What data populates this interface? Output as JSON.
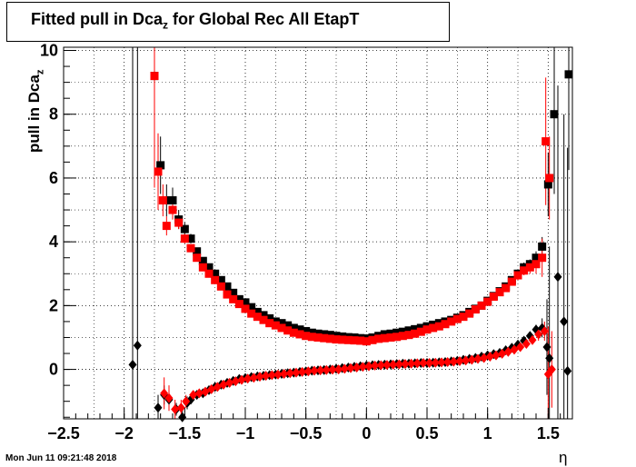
{
  "title": {
    "main": "Fitted pull in Dca",
    "sub": "z",
    "rest": " for Global Rec All EtapT"
  },
  "ylabel": {
    "main": "pull in Dca",
    "sub": "z"
  },
  "xlabel": "η",
  "timestamp": "Mon Jun 11 09:21:48 2018",
  "chart_data": {
    "type": "scatter",
    "title": "Fitted pull in Dca_z for Global Rec All EtapT",
    "xlabel": "η",
    "ylabel": "pull in Dca_z",
    "xlim": [
      -2.5,
      1.7
    ],
    "ylim": [
      -1.55,
      10.1
    ],
    "xticks": [
      -2.5,
      -2,
      -1.5,
      -1,
      -0.5,
      0,
      0.5,
      1,
      1.5
    ],
    "xtick_labels": [
      "−2.5",
      "−2",
      "−1.5",
      "−1",
      "−0.5",
      "0",
      "0.5",
      "1",
      "1.5"
    ],
    "yticks": [
      0,
      2,
      4,
      6,
      8,
      10
    ],
    "ytick_labels": [
      "0",
      "2",
      "4",
      "6",
      "8",
      "10"
    ],
    "grid": true,
    "series": [
      {
        "marker": "square",
        "color": "#000000",
        "x": [
          -1.75,
          -1.7,
          -1.65,
          -1.6,
          -1.55,
          -1.5,
          -1.45,
          -1.4,
          -1.35,
          -1.3,
          -1.25,
          -1.2,
          -1.15,
          -1.1,
          -1.05,
          -1.0,
          -0.95,
          -0.9,
          -0.85,
          -0.8,
          -0.75,
          -0.7,
          -0.65,
          -0.6,
          -0.55,
          -0.5,
          -0.45,
          -0.4,
          -0.35,
          -0.3,
          -0.25,
          -0.2,
          -0.15,
          -0.1,
          -0.05,
          0.0,
          0.05,
          0.1,
          0.15,
          0.2,
          0.25,
          0.3,
          0.35,
          0.4,
          0.45,
          0.5,
          0.55,
          0.6,
          0.65,
          0.7,
          0.75,
          0.8,
          0.85,
          0.9,
          0.95,
          1.0,
          1.05,
          1.1,
          1.15,
          1.2,
          1.25,
          1.3,
          1.35,
          1.4,
          1.45,
          1.5,
          1.55,
          1.67
        ],
        "y": [
          9.2,
          6.4,
          5.3,
          5.3,
          4.7,
          4.4,
          4.1,
          3.7,
          3.4,
          3.2,
          3.0,
          2.8,
          2.6,
          2.4,
          2.2,
          2.1,
          1.95,
          1.8,
          1.7,
          1.6,
          1.5,
          1.45,
          1.38,
          1.3,
          1.25,
          1.2,
          1.15,
          1.12,
          1.1,
          1.08,
          1.05,
          1.03,
          1.01,
          1.0,
          0.98,
          0.97,
          1.0,
          1.05,
          1.1,
          1.12,
          1.15,
          1.18,
          1.22,
          1.26,
          1.3,
          1.35,
          1.4,
          1.45,
          1.5,
          1.55,
          1.62,
          1.7,
          1.8,
          1.9,
          2.0,
          2.15,
          2.3,
          2.45,
          2.6,
          2.8,
          3.0,
          3.2,
          3.3,
          3.5,
          3.85,
          5.8,
          8.0,
          9.25
        ],
        "yerr": [
          0,
          0.9,
          0.5,
          0.4,
          0.3,
          0.2,
          0.15,
          0.1,
          0,
          0,
          0,
          0,
          0,
          0,
          0,
          0,
          0,
          0,
          0,
          0,
          0,
          0,
          0,
          0,
          0,
          0,
          0,
          0,
          0,
          0,
          0,
          0,
          0,
          0,
          0,
          0,
          0,
          0,
          0,
          0,
          0,
          0,
          0,
          0,
          0,
          0,
          0,
          0,
          0,
          0,
          0,
          0,
          0,
          0,
          0,
          0,
          0,
          0,
          0,
          0.1,
          0.1,
          0.15,
          0.15,
          0.2,
          0.3,
          1.0,
          2.5,
          3.0
        ]
      },
      {
        "marker": "square",
        "color": "#ff0000",
        "x": [
          -1.75,
          -1.72,
          -1.68,
          -1.65,
          -1.6,
          -1.55,
          -1.5,
          -1.45,
          -1.4,
          -1.35,
          -1.3,
          -1.25,
          -1.2,
          -1.15,
          -1.1,
          -1.05,
          -1.0,
          -0.95,
          -0.9,
          -0.85,
          -0.8,
          -0.75,
          -0.7,
          -0.65,
          -0.6,
          -0.55,
          -0.5,
          -0.45,
          -0.4,
          -0.35,
          -0.3,
          -0.25,
          -0.2,
          -0.15,
          -0.1,
          -0.05,
          0.0,
          0.05,
          0.1,
          0.15,
          0.2,
          0.25,
          0.3,
          0.35,
          0.4,
          0.45,
          0.5,
          0.55,
          0.6,
          0.65,
          0.7,
          0.75,
          0.8,
          0.85,
          0.9,
          0.95,
          1.0,
          1.05,
          1.1,
          1.15,
          1.2,
          1.25,
          1.3,
          1.35,
          1.4,
          1.45,
          1.48,
          1.51
        ],
        "y": [
          9.2,
          6.2,
          5.3,
          4.5,
          5.0,
          4.6,
          4.1,
          3.8,
          3.5,
          3.2,
          3.0,
          2.8,
          2.6,
          2.35,
          2.2,
          2.05,
          1.9,
          1.75,
          1.65,
          1.55,
          1.45,
          1.38,
          1.3,
          1.22,
          1.15,
          1.1,
          1.05,
          1.02,
          1.0,
          0.98,
          0.96,
          0.94,
          0.93,
          0.92,
          0.91,
          0.9,
          0.88,
          0.92,
          0.96,
          0.98,
          1.0,
          1.02,
          1.05,
          1.08,
          1.12,
          1.18,
          1.25,
          1.3,
          1.35,
          1.42,
          1.5,
          1.58,
          1.65,
          1.75,
          1.88,
          2.0,
          2.12,
          2.28,
          2.42,
          2.55,
          2.75,
          2.95,
          3.1,
          3.2,
          3.3,
          3.5,
          7.15,
          6.0
        ],
        "yerr": [
          3.5,
          1.2,
          0.5,
          0.3,
          0.3,
          0.2,
          0.15,
          0.1,
          0,
          0,
          0,
          0,
          0,
          0,
          0,
          0,
          0,
          0,
          0,
          0,
          0,
          0,
          0,
          0,
          0,
          0,
          0,
          0,
          0,
          0,
          0,
          0,
          0,
          0,
          0,
          0,
          0,
          0,
          0,
          0,
          0,
          0,
          0,
          0,
          0,
          0,
          0,
          0,
          0,
          0,
          0,
          0,
          0,
          0,
          0,
          0,
          0,
          0,
          0,
          0.1,
          0.1,
          0.15,
          0.15,
          0.2,
          0.3,
          0.6,
          2.0,
          1.3
        ]
      },
      {
        "marker": "diamond",
        "color": "#000000",
        "x": [
          -1.93,
          -1.89,
          -1.72,
          -1.67,
          -1.63,
          -1.57,
          -1.52,
          -1.48,
          -1.45,
          -1.4,
          -1.35,
          -1.3,
          -1.25,
          -1.2,
          -1.15,
          -1.1,
          -1.05,
          -1.0,
          -0.95,
          -0.9,
          -0.85,
          -0.8,
          -0.75,
          -0.7,
          -0.65,
          -0.6,
          -0.55,
          -0.5,
          -0.45,
          -0.4,
          -0.35,
          -0.3,
          -0.25,
          -0.2,
          -0.15,
          -0.1,
          -0.05,
          0.0,
          0.05,
          0.1,
          0.15,
          0.2,
          0.25,
          0.3,
          0.35,
          0.4,
          0.45,
          0.5,
          0.55,
          0.6,
          0.65,
          0.7,
          0.75,
          0.8,
          0.85,
          0.9,
          0.95,
          1.0,
          1.05,
          1.1,
          1.15,
          1.2,
          1.25,
          1.3,
          1.35,
          1.4,
          1.45,
          1.49,
          1.51,
          1.58,
          1.63,
          1.66
        ],
        "y": [
          0.15,
          0.75,
          -1.2,
          -0.8,
          -0.95,
          -1.25,
          -1.5,
          -1.05,
          -0.95,
          -0.8,
          -0.75,
          -0.65,
          -0.55,
          -0.48,
          -0.42,
          -0.36,
          -0.3,
          -0.27,
          -0.24,
          -0.22,
          -0.2,
          -0.18,
          -0.16,
          -0.14,
          -0.12,
          -0.1,
          -0.08,
          -0.06,
          -0.04,
          -0.03,
          -0.02,
          0.0,
          0.02,
          0.04,
          0.06,
          0.08,
          0.1,
          0.12,
          0.13,
          0.14,
          0.15,
          0.16,
          0.17,
          0.18,
          0.18,
          0.19,
          0.2,
          0.2,
          0.21,
          0.22,
          0.23,
          0.25,
          0.27,
          0.3,
          0.33,
          0.36,
          0.4,
          0.44,
          0.48,
          0.52,
          0.6,
          0.68,
          0.78,
          0.9,
          1.05,
          1.25,
          1.3,
          0.7,
          0.35,
          2.9,
          1.5,
          -0.05
        ],
        "yerr": [
          11.0,
          10.0,
          0.4,
          0.3,
          0.3,
          0.2,
          0.3,
          0.2,
          0.1,
          0,
          0,
          0,
          0,
          0,
          0,
          0,
          0,
          0,
          0,
          0,
          0,
          0,
          0,
          0,
          0,
          0,
          0,
          0,
          0,
          0,
          0,
          0,
          0,
          0,
          0,
          0,
          0,
          0,
          0,
          0,
          0,
          0,
          0,
          0,
          0,
          0,
          0,
          0,
          0,
          0,
          0,
          0,
          0,
          0,
          0,
          0,
          0,
          0,
          0,
          0,
          0,
          0,
          0,
          0.05,
          0.1,
          0.15,
          0.3,
          1.5,
          3.5,
          6.0,
          6.5,
          7.0
        ]
      },
      {
        "marker": "diamond",
        "color": "#ff0000",
        "x": [
          -1.67,
          -1.63,
          -1.58,
          -1.53,
          -1.49,
          -1.43,
          -1.38,
          -1.33,
          -1.28,
          -1.23,
          -1.18,
          -1.13,
          -1.08,
          -1.03,
          -0.98,
          -0.93,
          -0.88,
          -0.83,
          -0.78,
          -0.73,
          -0.68,
          -0.63,
          -0.58,
          -0.53,
          -0.48,
          -0.43,
          -0.38,
          -0.33,
          -0.28,
          -0.23,
          -0.18,
          -0.13,
          -0.08,
          -0.03,
          0.02,
          0.07,
          0.12,
          0.17,
          0.22,
          0.27,
          0.32,
          0.37,
          0.42,
          0.47,
          0.52,
          0.57,
          0.62,
          0.67,
          0.72,
          0.77,
          0.82,
          0.87,
          0.92,
          0.97,
          1.02,
          1.07,
          1.12,
          1.17,
          1.22,
          1.27,
          1.32,
          1.37,
          1.42,
          1.47,
          1.5,
          1.53
        ],
        "y": [
          -0.75,
          -0.9,
          -1.25,
          -1.2,
          -1.0,
          -0.8,
          -0.75,
          -0.7,
          -0.62,
          -0.55,
          -0.48,
          -0.42,
          -0.37,
          -0.33,
          -0.29,
          -0.26,
          -0.23,
          -0.2,
          -0.18,
          -0.16,
          -0.14,
          -0.12,
          -0.1,
          -0.08,
          -0.06,
          -0.04,
          -0.03,
          -0.02,
          -0.01,
          0.0,
          0.02,
          0.04,
          0.06,
          0.08,
          0.1,
          0.12,
          0.13,
          0.14,
          0.15,
          0.16,
          0.17,
          0.18,
          0.19,
          0.2,
          0.2,
          0.21,
          0.22,
          0.23,
          0.24,
          0.26,
          0.28,
          0.3,
          0.33,
          0.36,
          0.4,
          0.44,
          0.49,
          0.55,
          0.62,
          0.7,
          0.8,
          0.92,
          1.1,
          1.2,
          -0.15,
          0.0
        ],
        "yerr": [
          0.5,
          0.4,
          0.3,
          0.25,
          0.2,
          0.1,
          0,
          0,
          0,
          0,
          0,
          0,
          0,
          0,
          0,
          0,
          0,
          0,
          0,
          0,
          0,
          0,
          0,
          0,
          0,
          0,
          0,
          0,
          0,
          0,
          0,
          0,
          0,
          0,
          0,
          0,
          0,
          0,
          0,
          0,
          0,
          0,
          0,
          0,
          0,
          0,
          0,
          0,
          0,
          0,
          0,
          0,
          0,
          0,
          0,
          0,
          0,
          0,
          0,
          0.05,
          0.1,
          0.15,
          0.2,
          0.3,
          1.5,
          1.2
        ]
      }
    ]
  }
}
